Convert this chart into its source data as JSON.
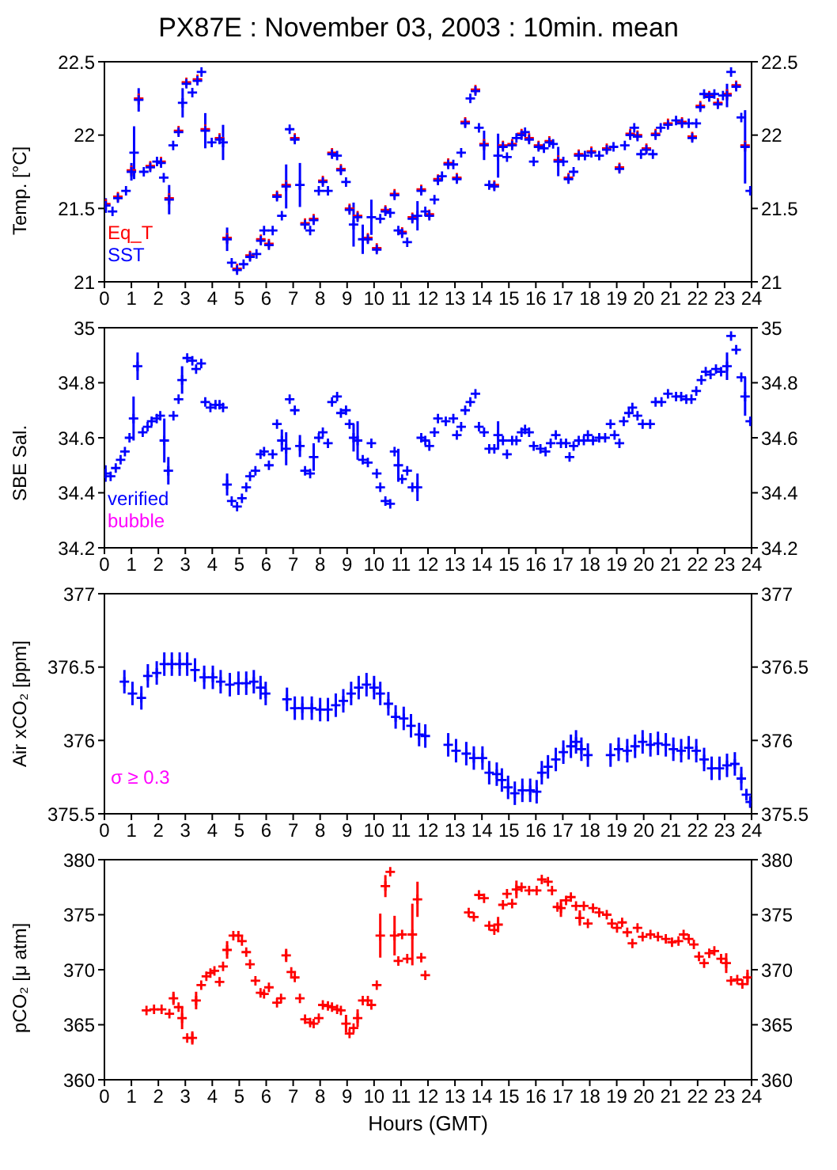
{
  "chart_data": [
    {
      "type": "scatter",
      "title": "PX87E : November 03, 2003 : 10min. mean",
      "ylabel": "Temp. [°C]",
      "xlim": [
        0,
        24
      ],
      "xticks": [
        0,
        1,
        2,
        3,
        4,
        5,
        6,
        7,
        8,
        9,
        10,
        11,
        12,
        13,
        14,
        15,
        16,
        17,
        18,
        19,
        20,
        21,
        22,
        23,
        24
      ],
      "ylim": [
        21,
        22.5
      ],
      "yticks": [
        21,
        21.5,
        22,
        22.5
      ],
      "y2lim": [
        21,
        22.5
      ],
      "y2ticks": [
        21,
        21.5,
        22,
        22.5
      ],
      "marker": "cross",
      "legend": "bottom left",
      "series": [
        {
          "name": "Eq_T",
          "color": "#ff0000",
          "x": [
            0.05,
            0.5,
            1.0,
            1.27,
            1.7,
            2.1,
            2.4,
            2.75,
            3.04,
            3.45,
            3.74,
            4.27,
            4.55,
            4.92,
            5.4,
            5.8,
            6.1,
            6.4,
            6.74,
            7.06,
            7.44,
            7.76,
            8.1,
            8.44,
            8.77,
            9.09,
            9.39,
            9.77,
            10.1,
            10.42,
            10.76,
            11.04,
            11.42,
            11.75,
            12.05,
            12.37,
            12.75,
            13.07,
            13.38,
            13.76,
            14.08,
            14.46,
            14.78,
            15.12,
            15.47,
            15.75,
            16.1,
            16.5,
            16.83,
            17.21,
            17.59,
            18.06,
            18.63,
            19.1,
            19.5,
            19.77,
            20.1,
            20.44,
            20.9,
            21.42,
            21.8,
            22.1,
            22.43,
            22.75,
            23.09,
            23.43,
            23.76
          ],
          "values": [
            21.53,
            21.58,
            21.76,
            22.25,
            21.79,
            21.82,
            21.57,
            22.03,
            22.36,
            22.38,
            22.04,
            21.98,
            21.3,
            21.09,
            21.18,
            21.29,
            21.26,
            21.59,
            21.66,
            21.98,
            21.4,
            21.43,
            21.69,
            21.88,
            21.77,
            21.5,
            21.45,
            21.3,
            21.23,
            21.49,
            21.6,
            21.34,
            21.44,
            21.63,
            21.46,
            21.7,
            21.81,
            21.71,
            22.09,
            22.31,
            21.94,
            21.66,
            21.93,
            21.94,
            22.01,
            21.98,
            21.93,
            21.96,
            21.83,
            21.71,
            21.87,
            21.89,
            21.91,
            21.78,
            22.01,
            22.0,
            21.91,
            22.01,
            22.08,
            22.09,
            21.99,
            22.2,
            22.27,
            22.22,
            22.28,
            22.34,
            21.93
          ]
        },
        {
          "name": "SST",
          "color": "#0000ff",
          "x": [
            0.05,
            0.3,
            0.5,
            0.8,
            1.0,
            1.1,
            1.27,
            1.46,
            1.7,
            1.95,
            2.1,
            2.2,
            2.4,
            2.55,
            2.75,
            2.9,
            3.04,
            3.26,
            3.45,
            3.6,
            3.74,
            3.98,
            4.27,
            4.4,
            4.55,
            4.72,
            4.92,
            5.16,
            5.4,
            5.64,
            5.8,
            5.92,
            6.1,
            6.24,
            6.4,
            6.58,
            6.74,
            6.87,
            7.06,
            7.25,
            7.44,
            7.63,
            7.76,
            7.95,
            8.1,
            8.29,
            8.44,
            8.63,
            8.77,
            8.96,
            9.09,
            9.24,
            9.39,
            9.58,
            9.77,
            9.9,
            10.1,
            10.23,
            10.42,
            10.6,
            10.76,
            10.9,
            11.04,
            11.23,
            11.42,
            11.61,
            11.75,
            11.9,
            12.05,
            12.24,
            12.37,
            12.52,
            12.75,
            12.94,
            13.07,
            13.23,
            13.38,
            13.57,
            13.76,
            13.89,
            14.08,
            14.27,
            14.46,
            14.6,
            14.78,
            14.93,
            15.12,
            15.28,
            15.47,
            15.6,
            15.75,
            15.92,
            16.1,
            16.3,
            16.5,
            16.64,
            16.83,
            17.02,
            17.21,
            17.4,
            17.59,
            17.82,
            18.06,
            18.35,
            18.63,
            18.88,
            19.1,
            19.3,
            19.5,
            19.65,
            19.77,
            19.9,
            20.1,
            20.34,
            20.44,
            20.63,
            20.9,
            21.2,
            21.42,
            21.67,
            21.8,
            21.95,
            22.1,
            22.24,
            22.43,
            22.62,
            22.75,
            22.94,
            23.09,
            23.24,
            23.43,
            23.62,
            23.76,
            23.95
          ],
          "values": [
            21.52,
            21.48,
            21.57,
            21.62,
            21.75,
            21.88,
            22.24,
            21.75,
            21.78,
            21.82,
            21.81,
            21.71,
            21.56,
            21.93,
            22.02,
            22.22,
            22.35,
            22.29,
            22.37,
            22.43,
            22.03,
            21.95,
            21.97,
            21.95,
            21.29,
            21.13,
            21.08,
            21.12,
            21.17,
            21.19,
            21.28,
            21.35,
            21.25,
            21.35,
            21.58,
            21.45,
            21.65,
            22.04,
            21.97,
            21.66,
            21.39,
            21.35,
            21.42,
            21.62,
            21.68,
            21.62,
            21.87,
            21.86,
            21.76,
            21.68,
            21.49,
            21.39,
            21.44,
            21.29,
            21.29,
            21.44,
            21.22,
            21.43,
            21.48,
            21.47,
            21.59,
            21.35,
            21.33,
            21.27,
            21.43,
            21.45,
            21.62,
            21.48,
            21.45,
            21.56,
            21.69,
            21.72,
            21.8,
            21.8,
            21.7,
            21.88,
            22.08,
            22.25,
            22.3,
            22.05,
            21.93,
            21.66,
            21.65,
            21.86,
            21.92,
            21.85,
            21.93,
            21.98,
            22.0,
            22.02,
            21.97,
            21.82,
            21.92,
            21.91,
            21.95,
            21.94,
            21.82,
            21.82,
            21.7,
            21.75,
            21.86,
            21.86,
            21.88,
            21.86,
            21.9,
            21.92,
            21.77,
            21.93,
            22.0,
            22.05,
            21.99,
            21.87,
            21.9,
            21.87,
            22.0,
            22.05,
            22.07,
            22.1,
            22.08,
            22.08,
            21.98,
            22.08,
            22.19,
            22.28,
            22.26,
            22.28,
            22.21,
            22.27,
            22.27,
            22.43,
            22.33,
            22.12,
            21.92,
            21.62
          ],
          "errors": [
            0.05,
            null,
            null,
            null,
            0.06,
            0.18,
            0.08,
            null,
            null,
            null,
            null,
            null,
            0.1,
            null,
            null,
            0.1,
            null,
            null,
            null,
            null,
            0.12,
            null,
            null,
            0.12,
            0.08,
            null,
            null,
            null,
            null,
            null,
            null,
            null,
            null,
            null,
            null,
            null,
            0.15,
            null,
            null,
            0.15,
            null,
            null,
            null,
            null,
            null,
            null,
            null,
            null,
            null,
            null,
            null,
            0.15,
            null,
            0.1,
            null,
            0.12,
            null,
            null,
            null,
            null,
            null,
            null,
            null,
            null,
            null,
            0.1,
            null,
            null,
            null,
            null,
            null,
            null,
            null,
            null,
            null,
            null,
            null,
            null,
            null,
            null,
            0.1,
            null,
            null,
            0.15,
            null,
            null,
            null,
            null,
            null,
            null,
            null,
            null,
            null,
            null,
            null,
            null,
            0.1,
            null,
            null,
            null,
            null,
            null,
            null,
            null,
            null,
            null,
            null,
            null,
            null,
            null,
            null,
            null,
            null,
            null,
            null,
            null,
            null,
            null,
            null,
            null,
            null,
            null,
            null,
            null,
            null,
            null,
            null,
            null,
            0.08,
            null,
            null,
            null,
            0.25,
            null
          ]
        }
      ]
    },
    {
      "type": "scatter",
      "ylabel": "SBE Sal.",
      "xlim": [
        0,
        24
      ],
      "xticks": [
        0,
        1,
        2,
        3,
        4,
        5,
        6,
        7,
        8,
        9,
        10,
        11,
        12,
        13,
        14,
        15,
        16,
        17,
        18,
        19,
        20,
        21,
        22,
        23,
        24
      ],
      "ylim": [
        34.2,
        35
      ],
      "yticks": [
        34.2,
        34.4,
        34.6,
        34.8,
        35
      ],
      "y2lim": [
        34.2,
        35
      ],
      "y2ticks": [
        34.2,
        34.4,
        34.6,
        34.8,
        35
      ],
      "marker": "cross",
      "legend": "bottom left",
      "series": [
        {
          "name": "verified",
          "color": "#0000ff",
          "x": [
            0.04,
            0.23,
            0.42,
            0.6,
            0.76,
            0.93,
            1.08,
            1.23,
            1.42,
            1.6,
            1.75,
            1.94,
            2.07,
            2.22,
            2.37,
            2.56,
            2.75,
            2.88,
            3.07,
            3.26,
            3.4,
            3.59,
            3.74,
            3.93,
            4.12,
            4.27,
            4.4,
            4.55,
            4.72,
            4.92,
            5.1,
            5.26,
            5.4,
            5.6,
            5.79,
            5.92,
            6.1,
            6.24,
            6.4,
            6.58,
            6.74,
            6.87,
            7.06,
            7.25,
            7.44,
            7.63,
            7.76,
            7.95,
            8.1,
            8.29,
            8.44,
            8.63,
            8.77,
            8.96,
            9.09,
            9.24,
            9.39,
            9.58,
            9.77,
            9.9,
            10.1,
            10.23,
            10.42,
            10.6,
            10.76,
            10.9,
            11.04,
            11.23,
            11.42,
            11.61,
            11.75,
            11.9,
            12.05,
            12.24,
            12.37,
            12.66,
            12.94,
            13.07,
            13.23,
            13.38,
            13.57,
            13.76,
            13.89,
            14.08,
            14.27,
            14.46,
            14.6,
            14.78,
            14.93,
            15.12,
            15.28,
            15.47,
            15.6,
            15.75,
            15.92,
            16.17,
            16.36,
            16.55,
            16.74,
            16.93,
            17.12,
            17.25,
            17.4,
            17.59,
            17.78,
            17.93,
            18.12,
            18.35,
            18.57,
            18.77,
            18.92,
            19.1,
            19.26,
            19.45,
            19.58,
            19.77,
            19.96,
            20.24,
            20.44,
            20.66,
            20.9,
            21.2,
            21.39,
            21.58,
            21.77,
            21.95,
            22.14,
            22.3,
            22.48,
            22.68,
            22.87,
            23.09,
            23.24,
            23.43,
            23.62,
            23.76,
            23.95
          ],
          "values": [
            34.47,
            34.46,
            34.49,
            34.52,
            34.55,
            34.6,
            34.67,
            34.86,
            34.62,
            34.64,
            34.66,
            34.67,
            34.68,
            34.59,
            34.48,
            34.68,
            34.74,
            34.81,
            34.89,
            34.88,
            34.85,
            34.87,
            34.73,
            34.71,
            34.72,
            34.72,
            34.71,
            34.43,
            34.37,
            34.35,
            34.38,
            34.42,
            34.46,
            34.48,
            34.54,
            34.55,
            34.5,
            34.54,
            34.65,
            34.59,
            34.56,
            34.74,
            34.7,
            34.57,
            34.48,
            34.47,
            34.53,
            34.6,
            34.62,
            34.58,
            34.73,
            34.75,
            34.69,
            34.7,
            34.65,
            34.6,
            34.59,
            34.52,
            34.51,
            34.58,
            34.47,
            34.42,
            34.37,
            34.36,
            34.55,
            34.5,
            34.45,
            34.48,
            34.42,
            34.42,
            34.6,
            34.59,
            34.57,
            34.62,
            34.67,
            34.66,
            34.67,
            34.61,
            34.64,
            34.7,
            34.73,
            34.76,
            34.64,
            34.62,
            34.56,
            34.56,
            34.61,
            34.59,
            34.54,
            34.59,
            34.59,
            34.62,
            34.63,
            34.62,
            34.57,
            34.56,
            34.55,
            34.58,
            34.61,
            34.58,
            34.58,
            34.53,
            34.57,
            34.59,
            34.59,
            34.61,
            34.59,
            34.6,
            34.6,
            34.65,
            34.61,
            34.58,
            34.66,
            34.69,
            34.71,
            34.68,
            34.65,
            34.65,
            34.73,
            34.73,
            34.76,
            34.75,
            34.75,
            34.74,
            34.74,
            34.77,
            34.81,
            34.84,
            34.83,
            34.85,
            34.84,
            34.86,
            34.97,
            34.92,
            34.82,
            34.75,
            34.66
          ],
          "errors": [
            0.03,
            null,
            null,
            null,
            null,
            null,
            0.08,
            0.05,
            null,
            null,
            null,
            null,
            null,
            0.08,
            0.05,
            null,
            null,
            0.05,
            null,
            null,
            null,
            null,
            null,
            null,
            null,
            null,
            null,
            0.04,
            null,
            null,
            null,
            null,
            null,
            null,
            null,
            null,
            null,
            null,
            null,
            0.04,
            0.06,
            null,
            null,
            0.04,
            null,
            null,
            0.05,
            null,
            null,
            null,
            null,
            null,
            null,
            null,
            null,
            0.05,
            0.07,
            null,
            null,
            null,
            null,
            null,
            null,
            null,
            null,
            0.06,
            null,
            null,
            null,
            0.05,
            null,
            null,
            null,
            null,
            null,
            null,
            null,
            null,
            null,
            null,
            null,
            null,
            null,
            null,
            null,
            null,
            0.05,
            null,
            null,
            null,
            null,
            null,
            null,
            null,
            null,
            null,
            null,
            null,
            null,
            null,
            null,
            null,
            null,
            null,
            null,
            null,
            null,
            null,
            null,
            null,
            null,
            null,
            null,
            null,
            null,
            null,
            null,
            null,
            null,
            null,
            null,
            null,
            null,
            null,
            null,
            null,
            null,
            null,
            null,
            null,
            null,
            0.05,
            null,
            null,
            null,
            0.07,
            null
          ]
        },
        {
          "name": "bubble",
          "color": "#ff00ff"
        }
      ]
    },
    {
      "type": "scatter",
      "ylabel": "Air xCO₂ [ppm]",
      "xlim": [
        0,
        24
      ],
      "xticks": [
        0,
        1,
        2,
        3,
        4,
        5,
        6,
        7,
        8,
        9,
        10,
        11,
        12,
        13,
        14,
        15,
        16,
        17,
        18,
        19,
        20,
        21,
        22,
        23,
        24
      ],
      "ylim": [
        375.5,
        377
      ],
      "yticks": [
        375.5,
        376,
        376.5,
        377
      ],
      "y2lim": [
        375.5,
        377
      ],
      "y2ticks": [
        375.5,
        376,
        376.5,
        377
      ],
      "marker": "cross",
      "annotations": [
        "σ ≥ 0.3"
      ],
      "series": [
        {
          "color": "#0000ff",
          "x": [
            0.74,
            1.04,
            1.37,
            1.61,
            1.94,
            2.22,
            2.5,
            2.79,
            3.07,
            3.36,
            3.7,
            4.02,
            4.31,
            4.65,
            4.97,
            5.26,
            5.54,
            5.79,
            5.98,
            6.77,
            7.06,
            7.34,
            7.69,
            8.0,
            8.29,
            8.58,
            8.86,
            9.15,
            9.43,
            9.72,
            10.0,
            10.23,
            10.53,
            10.8,
            11.1,
            11.37,
            11.67,
            11.9,
            12.75,
            13.04,
            13.42,
            13.7,
            14.02,
            14.27,
            14.55,
            14.74,
            14.97,
            15.22,
            15.5,
            15.79,
            16.03,
            16.22,
            16.45,
            16.74,
            17.02,
            17.3,
            17.49,
            17.69,
            17.93,
            18.77,
            19.07,
            19.39,
            19.68,
            19.96,
            20.25,
            20.53,
            20.82,
            21.1,
            21.39,
            21.67,
            21.95,
            22.24,
            22.52,
            22.81,
            23.09,
            23.38,
            23.62,
            23.81,
            23.95
          ],
          "values": [
            376.4,
            376.32,
            376.29,
            376.44,
            376.46,
            376.52,
            376.52,
            376.52,
            376.52,
            376.48,
            376.43,
            376.43,
            376.4,
            376.38,
            376.39,
            376.39,
            376.4,
            376.36,
            376.32,
            376.28,
            376.22,
            376.22,
            376.22,
            376.21,
            376.21,
            376.24,
            376.27,
            376.32,
            376.36,
            376.38,
            376.36,
            376.32,
            376.25,
            376.16,
            376.15,
            376.1,
            376.04,
            376.03,
            375.97,
            375.93,
            375.91,
            375.88,
            375.88,
            375.78,
            375.77,
            375.73,
            375.68,
            375.64,
            375.66,
            375.66,
            375.65,
            375.78,
            375.82,
            375.87,
            375.92,
            375.96,
            375.99,
            375.94,
            375.9,
            375.9,
            375.94,
            375.93,
            375.96,
            375.99,
            375.97,
            375.98,
            375.97,
            375.94,
            375.93,
            375.95,
            375.93,
            375.87,
            375.81,
            375.81,
            375.83,
            375.84,
            375.74,
            375.63,
            375.58
          ],
          "errors": [
            0.08,
            0.08,
            0.08,
            0.08,
            0.08,
            0.08,
            0.08,
            0.08,
            0.08,
            0.08,
            0.08,
            0.08,
            0.08,
            0.08,
            0.08,
            0.08,
            0.08,
            0.08,
            0.08,
            0.08,
            0.08,
            0.08,
            0.08,
            0.08,
            0.08,
            0.08,
            0.08,
            0.08,
            0.08,
            0.08,
            0.08,
            0.08,
            0.08,
            0.08,
            0.08,
            0.08,
            0.08,
            0.08,
            0.08,
            0.08,
            0.08,
            0.08,
            0.08,
            0.08,
            0.08,
            0.08,
            0.08,
            0.08,
            0.08,
            0.08,
            0.08,
            0.08,
            0.08,
            0.08,
            0.08,
            0.08,
            0.08,
            0.08,
            0.08,
            0.08,
            0.08,
            0.08,
            0.08,
            0.08,
            0.08,
            0.08,
            0.08,
            0.08,
            0.08,
            0.08,
            0.08,
            0.08,
            0.08,
            0.08,
            0.08,
            0.08,
            0.08,
            0.04,
            0.04
          ]
        }
      ]
    },
    {
      "type": "scatter",
      "ylabel": "pCO₂ [μ atm]",
      "xlabel": "Hours (GMT)",
      "xlim": [
        0,
        24
      ],
      "xticks": [
        0,
        1,
        2,
        3,
        4,
        5,
        6,
        7,
        8,
        9,
        10,
        11,
        12,
        13,
        14,
        15,
        16,
        17,
        18,
        19,
        20,
        21,
        22,
        23,
        24
      ],
      "ylim": [
        360,
        380
      ],
      "yticks": [
        360,
        365,
        370,
        375,
        380
      ],
      "y2lim": [
        360,
        380
      ],
      "y2ticks": [
        360,
        365,
        370,
        375,
        380
      ],
      "marker": "cross",
      "series": [
        {
          "color": "#ff0000",
          "x": [
            1.56,
            1.84,
            2.12,
            2.41,
            2.56,
            2.75,
            2.88,
            3.07,
            3.26,
            3.4,
            3.59,
            3.78,
            3.93,
            4.08,
            4.27,
            4.4,
            4.55,
            4.78,
            4.97,
            5.1,
            5.26,
            5.4,
            5.6,
            5.79,
            5.92,
            6.1,
            6.4,
            6.55,
            6.74,
            6.93,
            7.06,
            7.25,
            7.44,
            7.63,
            7.76,
            7.95,
            8.1,
            8.29,
            8.44,
            8.63,
            8.77,
            8.96,
            9.09,
            9.24,
            9.39,
            9.58,
            9.77,
            9.9,
            10.1,
            10.23,
            10.42,
            10.6,
            10.76,
            10.9,
            11.04,
            11.23,
            11.42,
            11.61,
            11.75,
            11.9,
            13.51,
            13.7,
            13.89,
            14.08,
            14.27,
            14.46,
            14.6,
            14.78,
            14.93,
            15.12,
            15.28,
            15.47,
            15.75,
            16.03,
            16.22,
            16.45,
            16.6,
            16.8,
            16.93,
            17.12,
            17.3,
            17.49,
            17.63,
            17.78,
            17.93,
            18.12,
            18.35,
            18.63,
            18.82,
            19.01,
            19.2,
            19.39,
            19.58,
            19.77,
            19.96,
            20.25,
            20.53,
            20.82,
            21.05,
            21.29,
            21.48,
            21.67,
            21.86,
            22.05,
            22.24,
            22.43,
            22.62,
            22.87,
            23.06,
            23.24,
            23.47,
            23.66,
            23.85
          ],
          "values": [
            366.3,
            366.4,
            366.4,
            366.0,
            367.4,
            366.6,
            365.6,
            363.8,
            363.8,
            367.2,
            368.6,
            369.4,
            369.7,
            369.9,
            368.9,
            370.3,
            371.8,
            373.1,
            373.1,
            372.6,
            371.6,
            370.5,
            369.0,
            367.9,
            367.8,
            368.4,
            367.0,
            367.4,
            371.3,
            369.8,
            369.3,
            367.4,
            365.5,
            365.2,
            365.1,
            365.6,
            366.8,
            366.7,
            366.6,
            366.4,
            366.3,
            365.1,
            364.2,
            364.7,
            365.6,
            367.2,
            367.2,
            366.8,
            368.6,
            373.1,
            377.6,
            378.9,
            373.1,
            370.8,
            373.2,
            371.0,
            373.2,
            376.4,
            371.1,
            369.5,
            375.2,
            374.8,
            376.8,
            376.5,
            374.0,
            373.6,
            374.1,
            375.9,
            376.9,
            376.0,
            377.3,
            377.5,
            377.2,
            377.2,
            378.2,
            378.0,
            377.2,
            375.7,
            375.6,
            376.3,
            376.6,
            375.8,
            374.7,
            375.8,
            374.2,
            375.6,
            375.2,
            375.0,
            374.2,
            373.8,
            374.3,
            373.4,
            372.4,
            373.8,
            373.0,
            373.2,
            373.0,
            372.8,
            372.5,
            372.6,
            373.2,
            372.8,
            372.3,
            371.2,
            370.6,
            371.5,
            371.7,
            371.0,
            370.6,
            369.0,
            369.1,
            368.7,
            369.3
          ],
          "errors": [
            null,
            null,
            null,
            null,
            0.6,
            null,
            1,
            null,
            0.6,
            0.8,
            null,
            null,
            null,
            null,
            null,
            null,
            0.8,
            null,
            null,
            null,
            null,
            null,
            null,
            null,
            null,
            null,
            null,
            null,
            0.6,
            null,
            null,
            null,
            null,
            null,
            null,
            null,
            null,
            null,
            null,
            null,
            null,
            0.8,
            null,
            null,
            0.8,
            null,
            null,
            null,
            null,
            2,
            1,
            null,
            1.8,
            null,
            null,
            null,
            2.8,
            1.6,
            null,
            null,
            null,
            null,
            null,
            null,
            null,
            null,
            0.7,
            null,
            null,
            null,
            0.8,
            null,
            null,
            null,
            null,
            null,
            null,
            null,
            0.8,
            null,
            null,
            null,
            0.7,
            null,
            null,
            null,
            null,
            null,
            null,
            null,
            null,
            null,
            null,
            null,
            null,
            null,
            null,
            null,
            null,
            null,
            null,
            null,
            null,
            null,
            null,
            null,
            null,
            null,
            0.9,
            null,
            null,
            null,
            0.7
          ]
        }
      ]
    }
  ]
}
